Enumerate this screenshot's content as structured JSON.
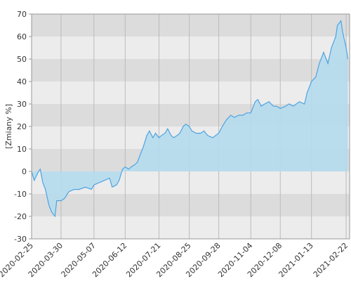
{
  "chart_data": {
    "type": "area",
    "y_label": "[Zmiany %]",
    "x": [
      "2020-02-25",
      "2020-02-28",
      "2020-03-04",
      "2020-03-06",
      "2020-03-09",
      "2020-03-12",
      "2020-03-16",
      "2020-03-19",
      "2020-03-23",
      "2020-03-25",
      "2020-03-30",
      "2020-04-03",
      "2020-04-08",
      "2020-04-14",
      "2020-04-20",
      "2020-04-27",
      "2020-05-04",
      "2020-05-07",
      "2020-05-13",
      "2020-05-19",
      "2020-05-25",
      "2020-05-28",
      "2020-06-02",
      "2020-06-05",
      "2020-06-09",
      "2020-06-12",
      "2020-06-16",
      "2020-06-19",
      "2020-06-23",
      "2020-06-26",
      "2020-06-30",
      "2020-07-03",
      "2020-07-07",
      "2020-07-10",
      "2020-07-14",
      "2020-07-17",
      "2020-07-21",
      "2020-07-24",
      "2020-07-28",
      "2020-07-31",
      "2020-08-04",
      "2020-08-07",
      "2020-08-11",
      "2020-08-14",
      "2020-08-18",
      "2020-08-21",
      "2020-08-25",
      "2020-08-28",
      "2020-09-02",
      "2020-09-07",
      "2020-09-11",
      "2020-09-15",
      "2020-09-21",
      "2020-09-28",
      "2020-10-02",
      "2020-10-07",
      "2020-10-12",
      "2020-10-16",
      "2020-10-21",
      "2020-10-26",
      "2020-10-30",
      "2020-11-04",
      "2020-11-09",
      "2020-11-12",
      "2020-11-16",
      "2020-11-20",
      "2020-11-25",
      "2020-11-30",
      "2020-12-04",
      "2020-12-08",
      "2020-12-14",
      "2020-12-18",
      "2020-12-23",
      "2020-12-30",
      "2021-01-05",
      "2021-01-08",
      "2021-01-13",
      "2021-01-18",
      "2021-01-22",
      "2021-01-27",
      "2021-02-01",
      "2021-02-05",
      "2021-02-10",
      "2021-02-12",
      "2021-02-16",
      "2021-02-18",
      "2021-02-22",
      "2021-02-24"
    ],
    "values": [
      0,
      -4,
      0,
      1,
      -5,
      -8,
      -15,
      -18,
      -20,
      -13,
      -13,
      -12,
      -9,
      -8,
      -8,
      -7,
      -8,
      -6,
      -5,
      -4,
      -3,
      -7,
      -6,
      -4,
      1,
      2,
      1,
      2,
      3,
      4,
      8,
      11,
      16,
      18,
      15,
      17,
      15,
      16,
      17,
      19,
      16,
      15,
      16,
      17,
      20,
      21,
      20,
      18,
      17,
      17,
      18,
      16,
      15,
      17,
      20,
      23,
      25,
      24,
      25,
      25,
      26,
      26,
      31,
      32,
      29,
      30,
      31,
      29,
      29,
      28,
      29,
      30,
      29,
      31,
      30,
      35,
      40,
      42,
      48,
      53,
      48,
      55,
      60,
      65,
      67,
      62,
      55,
      50
    ],
    "color": "#4da3e0",
    "fill": "#b5dcee",
    "xlim": [
      "2020-02-25",
      "2021-02-26"
    ],
    "xticks": [
      "2020-02-25",
      "2020-03-30",
      "2020-05-07",
      "2020-06-12",
      "2020-07-21",
      "2020-08-25",
      "2020-09-28",
      "2020-11-04",
      "2020-12-08",
      "2021-01-13",
      "2021-02-22"
    ],
    "ylim": [
      -30,
      70
    ],
    "yticks": [
      -30,
      -20,
      -10,
      0,
      10,
      20,
      30,
      40,
      50,
      60,
      70
    ],
    "band_colors": [
      "#dcdcdc",
      "#ececec"
    ],
    "grid": true
  }
}
